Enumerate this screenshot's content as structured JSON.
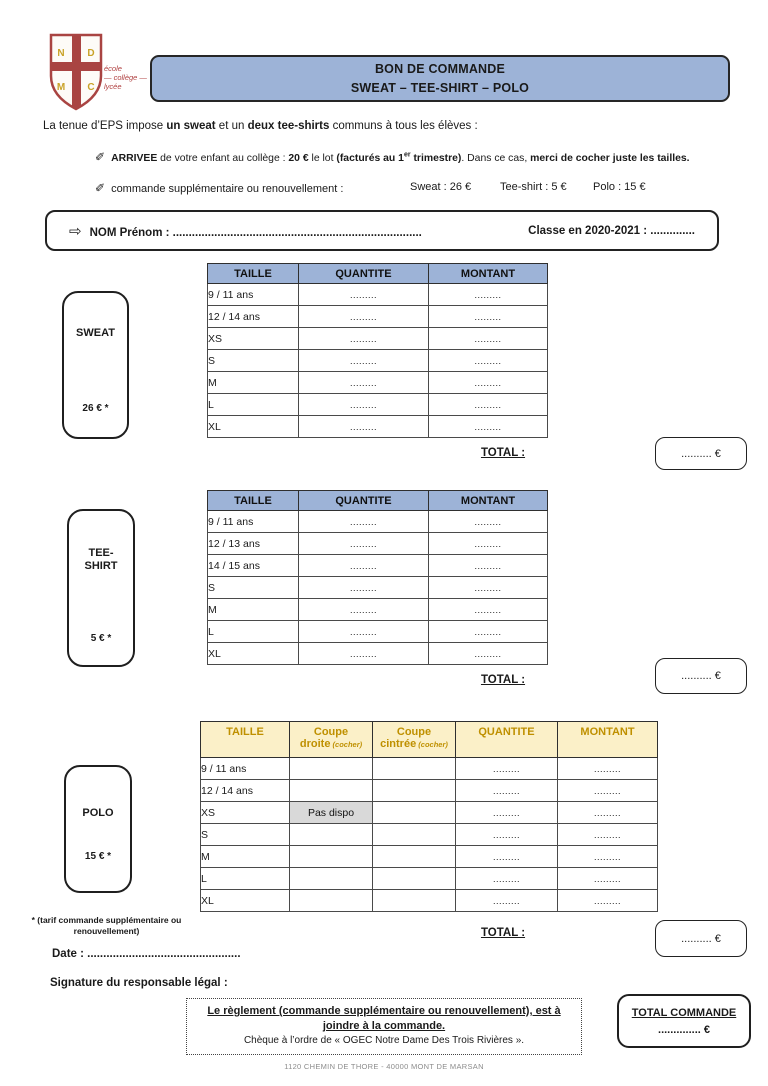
{
  "colors": {
    "header_blue": "#9DB3D7",
    "polo_yellow": "#FBF0C8",
    "polo_gold": "#BF9000",
    "unavailable_gray": "#D9D9D9",
    "logo_red": "#A94442",
    "crest_gold": "#C9A227"
  },
  "icons": {
    "pen": "✐",
    "arrow": "⇨"
  },
  "logo": {
    "levels": [
      "école",
      "— collège —",
      "lycée"
    ],
    "crest_letters": [
      "N",
      "D",
      "M",
      "C"
    ]
  },
  "title_box": {
    "line1": "BON DE COMMANDE",
    "line2": "SWEAT – TEE-SHIRT – POLO"
  },
  "intro_rich": [
    {
      "t": "La tenue d’EPS impose "
    },
    {
      "t": "un sweat",
      "b": 1
    },
    {
      "t": " et un "
    },
    {
      "t": "deux tee-shirts",
      "b": 1
    },
    {
      "t": " communs à tous les élèves :"
    }
  ],
  "bullet1_rich": [
    {
      "t": "ARRIVEE",
      "b": 1
    },
    {
      "t": " de votre enfant au collège : "
    },
    {
      "t": "20 €",
      "b": 1
    },
    {
      "t": " le lot "
    },
    {
      "t": "(facturés au 1",
      "b": 1
    },
    {
      "t": "er",
      "b": 1,
      "sup": 1
    },
    {
      "t": " trimestre)",
      "b": 1
    },
    {
      "t": ". Dans ce cas, "
    },
    {
      "t": "merci de cocher juste les tailles.",
      "b": 1
    }
  ],
  "bullet2": {
    "label": "commande supplémentaire ou renouvellement :",
    "prices": [
      "Sweat : 26 €",
      "Tee-shirt : 5 €",
      "Polo : 15 €"
    ]
  },
  "name_box": {
    "left": "NOM Prénom : ..............................................................................",
    "right": "Classe en 2020-2021 : .............."
  },
  "sections": {
    "sweat": {
      "label": "SWEAT",
      "price": "26 € *",
      "table": {
        "headers": [
          "TAILLE",
          "QUANTITE",
          "MONTANT"
        ],
        "rows": [
          [
            "9 / 11 ans",
            ".........",
            "........."
          ],
          [
            "12 / 14 ans",
            ".........",
            "........."
          ],
          [
            "XS",
            ".........",
            "........."
          ],
          [
            "S",
            ".........",
            "........."
          ],
          [
            "M",
            ".........",
            "........."
          ],
          [
            "L",
            ".........",
            "........."
          ],
          [
            "XL",
            ".........",
            "........."
          ]
        ]
      },
      "total_label": "TOTAL :",
      "total_value": ".......... €"
    },
    "tee": {
      "label": "TEE-\nSHIRT",
      "price": "5 € *",
      "table": {
        "headers": [
          "TAILLE",
          "QUANTITE",
          "MONTANT"
        ],
        "rows": [
          [
            "9 / 11 ans",
            ".........",
            "........."
          ],
          [
            "12 / 13 ans",
            ".........",
            "........."
          ],
          [
            "14 / 15 ans",
            ".........",
            "........."
          ],
          [
            "S",
            ".........",
            "........."
          ],
          [
            "M",
            ".........",
            "........."
          ],
          [
            "L",
            ".........",
            "........."
          ],
          [
            "XL",
            ".........",
            "........."
          ]
        ]
      },
      "total_label": "TOTAL :",
      "total_value": ".......... €"
    },
    "polo": {
      "label": "POLO",
      "price": "15 € *",
      "table": {
        "headers": [
          "TAILLE",
          {
            "t1": "Coupe",
            "t2": "droite",
            "sub": "(cocher)"
          },
          {
            "t1": "Coupe",
            "t2": "cintrée",
            "sub": "(cocher)"
          },
          "QUANTITE",
          "MONTANT"
        ],
        "rows": [
          [
            "9 / 11 ans",
            "",
            "",
            ".........",
            "........."
          ],
          [
            "12 / 14 ans",
            "",
            "",
            ".........",
            "........."
          ],
          [
            "XS",
            {
              "t": "Pas dispo",
              "cls": "gray"
            },
            "",
            ".........",
            "........."
          ],
          [
            "S",
            "",
            "",
            ".........",
            "........."
          ],
          [
            "M",
            "",
            "",
            ".........",
            "........."
          ],
          [
            "L",
            "",
            "",
            ".........",
            "........."
          ],
          [
            "XL",
            "",
            "",
            ".........",
            "........."
          ]
        ]
      },
      "total_label": "TOTAL :",
      "total_value": ".......... €"
    }
  },
  "footnote_line1": "* (tarif commande supplémentaire ou",
  "footnote_line2": "renouvellement)",
  "date_line": "Date : ................................................",
  "signature_line": "Signature du responsable légal :",
  "payment_box": {
    "main": "Le règlement (commande supplémentaire ou renouvellement), est à joindre à la commande.",
    "sub": "Chèque à l’ordre de « OGEC Notre Dame Des Trois Rivières »."
  },
  "total_order_box": {
    "title": "TOTAL COMMANDE",
    "value": ".............. €"
  },
  "footer": "1120 CHEMIN DE THORE - 40000 MONT DE MARSAN"
}
